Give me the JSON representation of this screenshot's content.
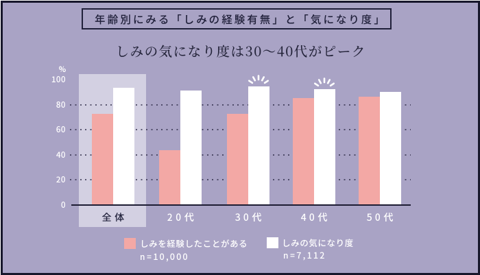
{
  "header": {
    "title": "年齢別にみる「しみの経験有無」と「気になり度」",
    "subtitle": "しみの気になり度は30〜40代がピーク"
  },
  "chart_data": {
    "type": "bar",
    "categories": [
      "全体",
      "20代",
      "30代",
      "40代",
      "50代"
    ],
    "series": [
      {
        "name": "しみを経験したことがある",
        "sample": "n=10,000",
        "color": "#f3a8a5",
        "values": [
          72,
          43,
          72,
          85,
          86
        ]
      },
      {
        "name": "しみの気になり度",
        "sample": "n=7,112",
        "color": "#ffffff",
        "values": [
          93,
          91,
          94,
          92,
          90
        ]
      }
    ],
    "unit": "%",
    "yticks": [
      0,
      20,
      40,
      60,
      80,
      100
    ],
    "ylim": [
      0,
      100
    ],
    "grid": "dotted",
    "legend_position": "bottom",
    "highlight_category": "全体",
    "emphasis_marks": {
      "series": "しみの気になり度",
      "categories": [
        "30代",
        "40代"
      ]
    }
  },
  "colors": {
    "background": "#a9a3c5",
    "highlight_band": "#d3d0e2",
    "bar_pink": "#f3a8a5",
    "bar_white": "#ffffff",
    "ink": "#20203a",
    "tick_text": "#ffffff"
  }
}
